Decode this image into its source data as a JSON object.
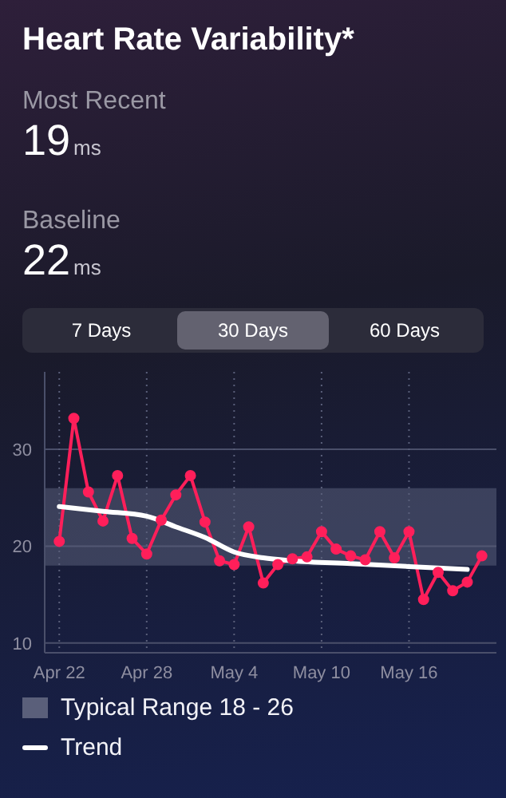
{
  "chart_data": {
    "type": "line",
    "title": "Heart Rate Variability*",
    "annotations": [
      "Most Recent",
      "19",
      "ms",
      "Baseline",
      "22",
      "ms",
      "7 Days",
      "30 Days",
      "60 Days"
    ],
    "x": [
      "--04-22",
      "--04-23",
      "--04-24",
      "--04-25",
      "--04-26",
      "--04-27",
      "--04-28",
      "--04-29",
      "--04-30",
      "--05-01",
      "--05-02",
      "--05-03",
      "--05-04",
      "--05-05",
      "--05-06",
      "--05-07",
      "--05-08",
      "--05-09",
      "--05-10",
      "--05-11",
      "--05-12",
      "--05-13",
      "--05-14",
      "--05-15",
      "--05-16",
      "--05-17",
      "--05-18",
      "--05-19",
      "--05-20",
      "--05-21"
    ],
    "series": [
      {
        "color": "#ff1f5a",
        "marker": "circle",
        "values": [
          20.5,
          33.2,
          25.6,
          22.6,
          27.3,
          20.8,
          19.2,
          22.7,
          25.3,
          27.3,
          22.5,
          18.5,
          18.1,
          22.0,
          16.2,
          18.1,
          18.7,
          18.9,
          21.5,
          19.7,
          19.0,
          18.6,
          21.5,
          18.8,
          21.5,
          14.5,
          17.3,
          15.4,
          16.3,
          19.0
        ]
      },
      {
        "name": "Trend",
        "color": "#ffffff",
        "marker": "none",
        "x": [
          "--04-22",
          "--04-25",
          "--04-28",
          "--04-30",
          "--05-02",
          "--05-04",
          "--05-06",
          "--05-08",
          "--05-12",
          "--05-16",
          "--05-20"
        ],
        "values": [
          24.1,
          23.6,
          23.1,
          22.0,
          20.9,
          19.4,
          18.8,
          18.5,
          18.2,
          17.9,
          17.6
        ]
      }
    ],
    "xlim": [
      "--04-21",
      "--05-22"
    ],
    "xticks": [
      {
        "value": "--04-22",
        "label": "Apr 22"
      },
      {
        "value": "--04-28",
        "label": "Apr 28"
      },
      {
        "value": "--05-04",
        "label": "May 4"
      },
      {
        "value": "--05-10",
        "label": "May 10"
      },
      {
        "value": "--05-16",
        "label": "May 16"
      }
    ],
    "ylim": [
      9,
      38
    ],
    "yticks": [
      10,
      20,
      30
    ],
    "bands": [
      {
        "axis": "y",
        "from": 18,
        "to": 26,
        "label": "Typical Range 18 - 26",
        "color": "#5a5f7a"
      }
    ],
    "grid": true,
    "legend": "bottom"
  }
}
